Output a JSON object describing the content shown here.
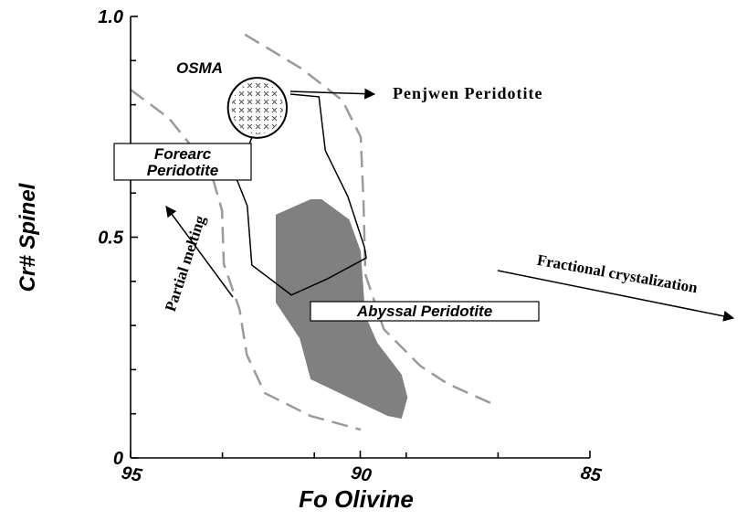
{
  "chart_data": {
    "type": "region",
    "xlabel": "Fo Olivine",
    "ylabel": "Cr# Spinel",
    "xlim": [
      95,
      85
    ],
    "ylim": [
      0,
      1
    ],
    "xticks": [
      95,
      90,
      85
    ],
    "xminor": [
      93,
      91,
      89,
      87
    ],
    "yticks": [
      0,
      0.5,
      {
        "value": 1,
        "label": "1.0"
      }
    ],
    "yminor": [
      0.1,
      0.2,
      0.3,
      0.4,
      0.6,
      0.7,
      0.8,
      0.9
    ],
    "series": [
      {
        "style": "dashed",
        "color": "#9a9a9a",
        "x": [
          95,
          94.17,
          93.27,
          93.01,
          92.97,
          92.63,
          92.47,
          92.08,
          91.08,
          89.99
        ],
        "y": [
          0.834,
          0.77,
          0.654,
          0.561,
          0.439,
          0.337,
          0.234,
          0.147,
          0.095,
          0.064
        ]
      },
      {
        "style": "dashed",
        "color": "#9a9a9a",
        "x": [
          92.51,
          91.28,
          90.39,
          89.99,
          89.93,
          89.89,
          89.49,
          88.7,
          88.1,
          87.11
        ],
        "y": [
          0.959,
          0.882,
          0.81,
          0.727,
          0.582,
          0.416,
          0.292,
          0.209,
          0.168,
          0.122
        ]
      },
      {
        "name": "Abyssal Peridotite",
        "style": "fill",
        "color": "#808080",
        "x": [
          91.84,
          91.08,
          90.84,
          90.24,
          89.99,
          89.89,
          89.63,
          89.1,
          88.97,
          89.1,
          89.4,
          91.08,
          91.32,
          91.84
        ],
        "y": [
          0.551,
          0.586,
          0.586,
          0.54,
          0.468,
          0.323,
          0.261,
          0.189,
          0.137,
          0.089,
          0.095,
          0.178,
          0.271,
          0.352
        ]
      },
      {
        "style": "line",
        "color": "#000000",
        "x": [
          91.52,
          90.9,
          90.76,
          90.27,
          89.91,
          89.87,
          90.71,
          91.5,
          92.36,
          92.46,
          92.7,
          92.34
        ],
        "y": [
          0.824,
          0.818,
          0.696,
          0.592,
          0.478,
          0.453,
          0.406,
          0.369,
          0.437,
          0.571,
          0.634,
          0.731
        ]
      }
    ],
    "ellipse": {
      "name": "Penjwen Peridotite",
      "cx": 92.24,
      "cy": 0.793,
      "rx": 0.64,
      "ry": 0.068
    },
    "annotations": {
      "osma": "OSMA",
      "forearc": [
        "Forearc",
        "Peridotite"
      ],
      "partial": "Partial melting",
      "fractional": "Fractional crystalization"
    }
  }
}
